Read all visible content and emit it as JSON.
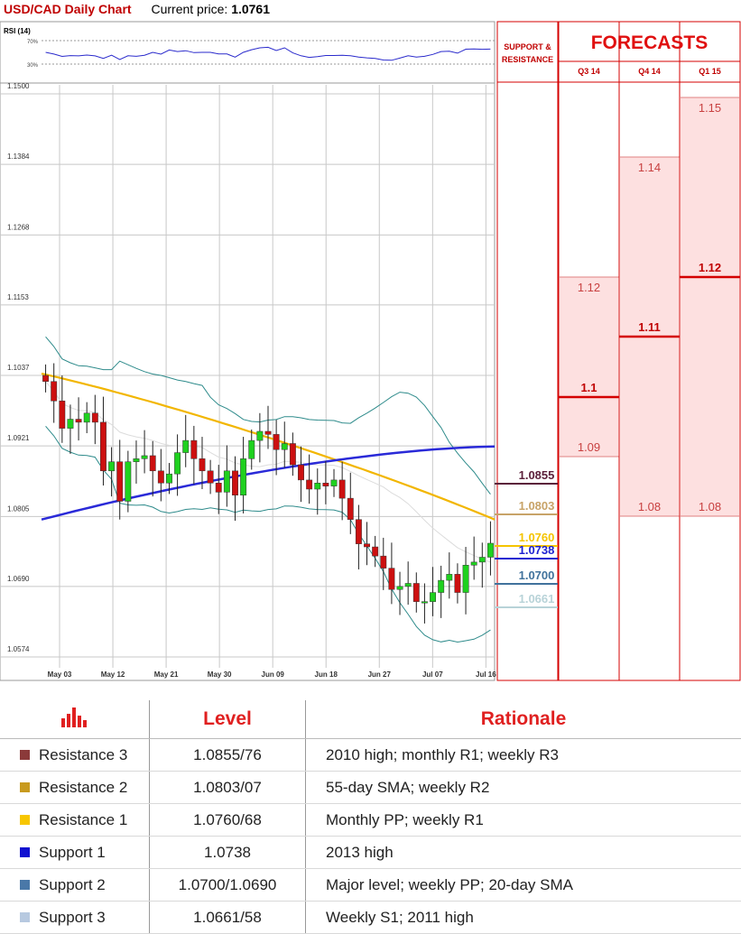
{
  "header": {
    "title": "USD/CAD Daily Chart",
    "price_label": "Current price:",
    "price_value": "1.0761"
  },
  "rsi": {
    "label": "RSI (14)",
    "levels": [
      "70%",
      "30%"
    ]
  },
  "sr_header": [
    "SUPPORT &",
    "RESISTANCE"
  ],
  "forecasts": {
    "title": "FORECASTS",
    "quarters": [
      {
        "name": "Q3 14",
        "mid": "1.1",
        "high": "1.12",
        "low": "1.09"
      },
      {
        "name": "Q4 14",
        "mid": "1.11",
        "high": "1.14",
        "low": "1.08"
      },
      {
        "name": "Q1 15",
        "mid": "1.12",
        "high": "1.15",
        "low": "1.08"
      }
    ]
  },
  "colors": {
    "r3": "#5b1f3a",
    "r2": "#c8a368",
    "r1": "#f5c400",
    "s1": "#1b1fd1",
    "s2": "#41729c",
    "s3": "#b8d3d8",
    "ma55": "#f2b600",
    "ma200": "#2a2ad8",
    "bb": "#2e8b8b",
    "bull": "#1fd11f",
    "bear": "#cc1010",
    "fc": "#fde0e0",
    "fc_line": "#d40000"
  },
  "chart_data": {
    "type": "candlestick",
    "title": "USD/CAD Daily Chart",
    "ylim": [
      1.0574,
      1.15
    ],
    "yticks": [
      "1.1500",
      "1.1384",
      "1.1268",
      "1.1153",
      "1.1037",
      "1.0921",
      "1.0805",
      "1.0690",
      "1.0574"
    ],
    "xticks": [
      "May 03",
      "May 12",
      "May 21",
      "May 30",
      "Jun 09",
      "Jun 18",
      "Jun 27",
      "Jul 07",
      "Jul 16"
    ],
    "closes": [
      1.1027,
      1.0995,
      1.095,
      1.0965,
      1.096,
      1.0975,
      1.096,
      1.088,
      1.0895,
      1.083,
      1.0895,
      1.09,
      1.0905,
      1.088,
      1.086,
      1.0875,
      1.091,
      1.093,
      1.09,
      1.088,
      1.086,
      1.0845,
      1.088,
      1.084,
      1.09,
      1.093,
      1.0945,
      1.094,
      1.0915,
      1.0925,
      1.089,
      1.0865,
      1.085,
      1.086,
      1.0855,
      1.0865,
      1.0835,
      1.08,
      1.076,
      1.0755,
      1.074,
      1.072,
      1.0685,
      1.069,
      1.0695,
      1.0665,
      1.0665,
      1.068,
      1.07,
      1.071,
      1.068,
      1.0725,
      1.073,
      1.0738,
      1.0761
    ],
    "ma55_end": 1.08,
    "ma200_end": 1.092,
    "levels": [
      {
        "name": "Resistance 3",
        "value": 1.0855,
        "label": "1.0855"
      },
      {
        "name": "Resistance 2",
        "value": 1.0803,
        "label": "1.0803"
      },
      {
        "name": "Resistance 1",
        "value": 1.076,
        "label": "1.0760"
      },
      {
        "name": "Support 1",
        "value": 1.0738,
        "label": "1.0738"
      },
      {
        "name": "Support 2",
        "value": 1.07,
        "label": "1.0700"
      },
      {
        "name": "Support 3",
        "value": 1.0661,
        "label": "1.0661"
      }
    ]
  },
  "table": {
    "headers": [
      "Level",
      "Rationale"
    ],
    "rows": [
      {
        "name": "Resistance 3",
        "level": "1.0855/76",
        "rationale": "2010 high;  monthly R1; weekly R3",
        "color": "#8b3a3a"
      },
      {
        "name": "Resistance 2",
        "level": "1.0803/07",
        "rationale": "55-day SMA; weekly R2",
        "color": "#c89a1e"
      },
      {
        "name": "Resistance 1",
        "level": "1.0760/68",
        "rationale": "Monthly PP; weekly R1",
        "color": "#f7c600"
      },
      {
        "name": "Support 1",
        "level": "1.0738",
        "rationale": "2013 high",
        "color": "#1010d0"
      },
      {
        "name": "Support 2",
        "level": "1.0700/1.0690",
        "rationale": "Major level; weekly PP; 20-day SMA",
        "color": "#4a78a8"
      },
      {
        "name": "Support 3",
        "level": "1.0661/58",
        "rationale": "Weekly S1; 2011 high",
        "color": "#b7c9e0"
      }
    ]
  }
}
